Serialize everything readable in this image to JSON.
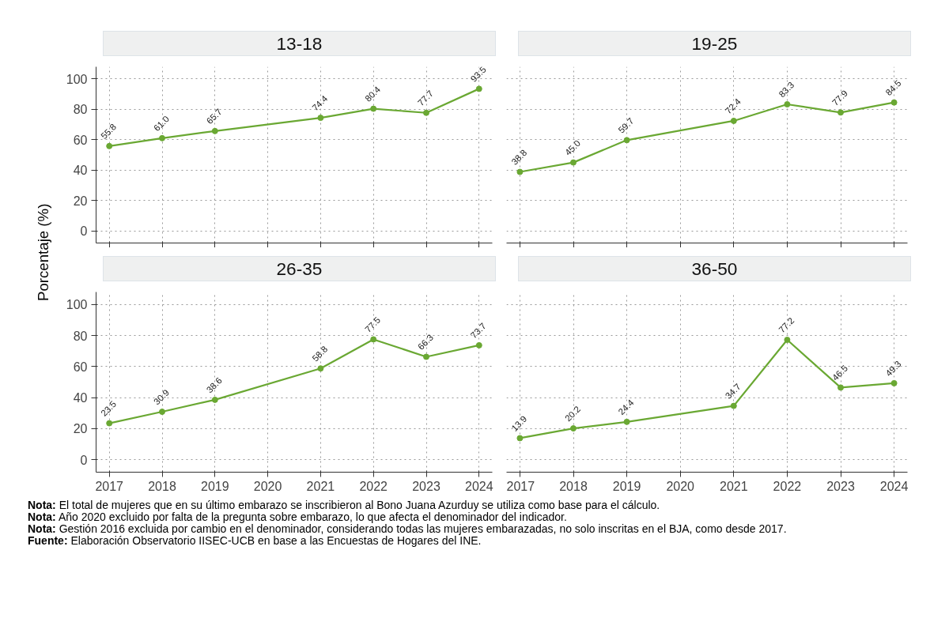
{
  "chart_data": [
    {
      "type": "line",
      "title": "13-18",
      "ylabel": "Porcentaje (%)",
      "x": [
        2017,
        2018,
        2019,
        2021,
        2022,
        2023,
        2024
      ],
      "series": [
        {
          "color": "#6aa833",
          "values": [
            55.8,
            61.0,
            65.7,
            74.4,
            80.4,
            77.7,
            93.5
          ],
          "value_labels": [
            "55.8",
            "61.0",
            "65.7",
            "74.4",
            "80.4",
            "77.7",
            "93.5"
          ]
        }
      ],
      "xlim": [
        2016.75,
        2024.25
      ],
      "ylim": [
        -8,
        108
      ],
      "xticks": [
        2017,
        2018,
        2019,
        2020,
        2021,
        2022,
        2023,
        2024
      ],
      "yticks": [
        0,
        20,
        40,
        60,
        80,
        100
      ],
      "tick_labels": "y",
      "grid": true,
      "marker": "circle",
      "line_style": "solid"
    },
    {
      "type": "line",
      "title": "19-25",
      "x": [
        2017,
        2018,
        2019,
        2021,
        2022,
        2023,
        2024
      ],
      "series": [
        {
          "color": "#6aa833",
          "values": [
            38.8,
            45.0,
            59.7,
            72.4,
            83.3,
            77.9,
            84.5
          ],
          "value_labels": [
            "38.8",
            "45.0",
            "59.7",
            "72.4",
            "83.3",
            "77.9",
            "84.5"
          ]
        }
      ],
      "xlim": [
        2016.75,
        2024.25
      ],
      "ylim": [
        -8,
        108
      ],
      "xticks": [
        2017,
        2018,
        2019,
        2020,
        2021,
        2022,
        2023,
        2024
      ],
      "yticks": [
        0,
        20,
        40,
        60,
        80,
        100
      ],
      "tick_labels": false,
      "grid": true,
      "marker": "circle",
      "line_style": "solid"
    },
    {
      "type": "line",
      "title": "26-35",
      "x": [
        2017,
        2018,
        2019,
        2021,
        2022,
        2023,
        2024
      ],
      "series": [
        {
          "color": "#6aa833",
          "values": [
            23.5,
            30.9,
            38.6,
            58.8,
            77.5,
            66.3,
            73.7
          ],
          "value_labels": [
            "23.5",
            "30.9",
            "38.6",
            "58.8",
            "77.5",
            "66.3",
            "73.7"
          ]
        }
      ],
      "xlim": [
        2016.75,
        2024.25
      ],
      "ylim": [
        -8,
        108
      ],
      "xticks": [
        2017,
        2018,
        2019,
        2020,
        2021,
        2022,
        2023,
        2024
      ],
      "yticks": [
        0,
        20,
        40,
        60,
        80,
        100
      ],
      "grid": true,
      "marker": "circle",
      "line_style": "solid"
    },
    {
      "type": "line",
      "title": "36-50",
      "x": [
        2017,
        2018,
        2019,
        2021,
        2022,
        2023,
        2024
      ],
      "series": [
        {
          "color": "#6aa833",
          "values": [
            13.9,
            20.2,
            24.4,
            34.7,
            77.2,
            46.5,
            49.3
          ],
          "value_labels": [
            "13.9",
            "20.2",
            "24.4",
            "34.7",
            "77.2",
            "46.5",
            "49.3"
          ]
        }
      ],
      "xlim": [
        2016.75,
        2024.25
      ],
      "ylim": [
        -8,
        108
      ],
      "xticks": [
        2017,
        2018,
        2019,
        2020,
        2021,
        2022,
        2023,
        2024
      ],
      "yticks": [
        0,
        20,
        40,
        60,
        80,
        100
      ],
      "tick_labels": "x",
      "grid": true,
      "marker": "circle",
      "line_style": "solid",
      "annotations": [
        "Nota: El total de mujeres que en su último embarazo se inscribieron al Bono Juana Azurduy se utiliza como base para el cálculo.",
        "Nota: Año 2020 excluido por falta de la pregunta sobre embarazo, lo que afecta el denominador del indicador.",
        "Nota: Gestión 2016 excluida por cambio en el denominador, considerando todas las mujeres embarazadas, no solo inscritas en el BJA, como desde 2017.",
        "Fuente: Elaboración Observatorio IISEC-UCB en base a las Encuestas de Hogares del INE."
      ]
    }
  ]
}
